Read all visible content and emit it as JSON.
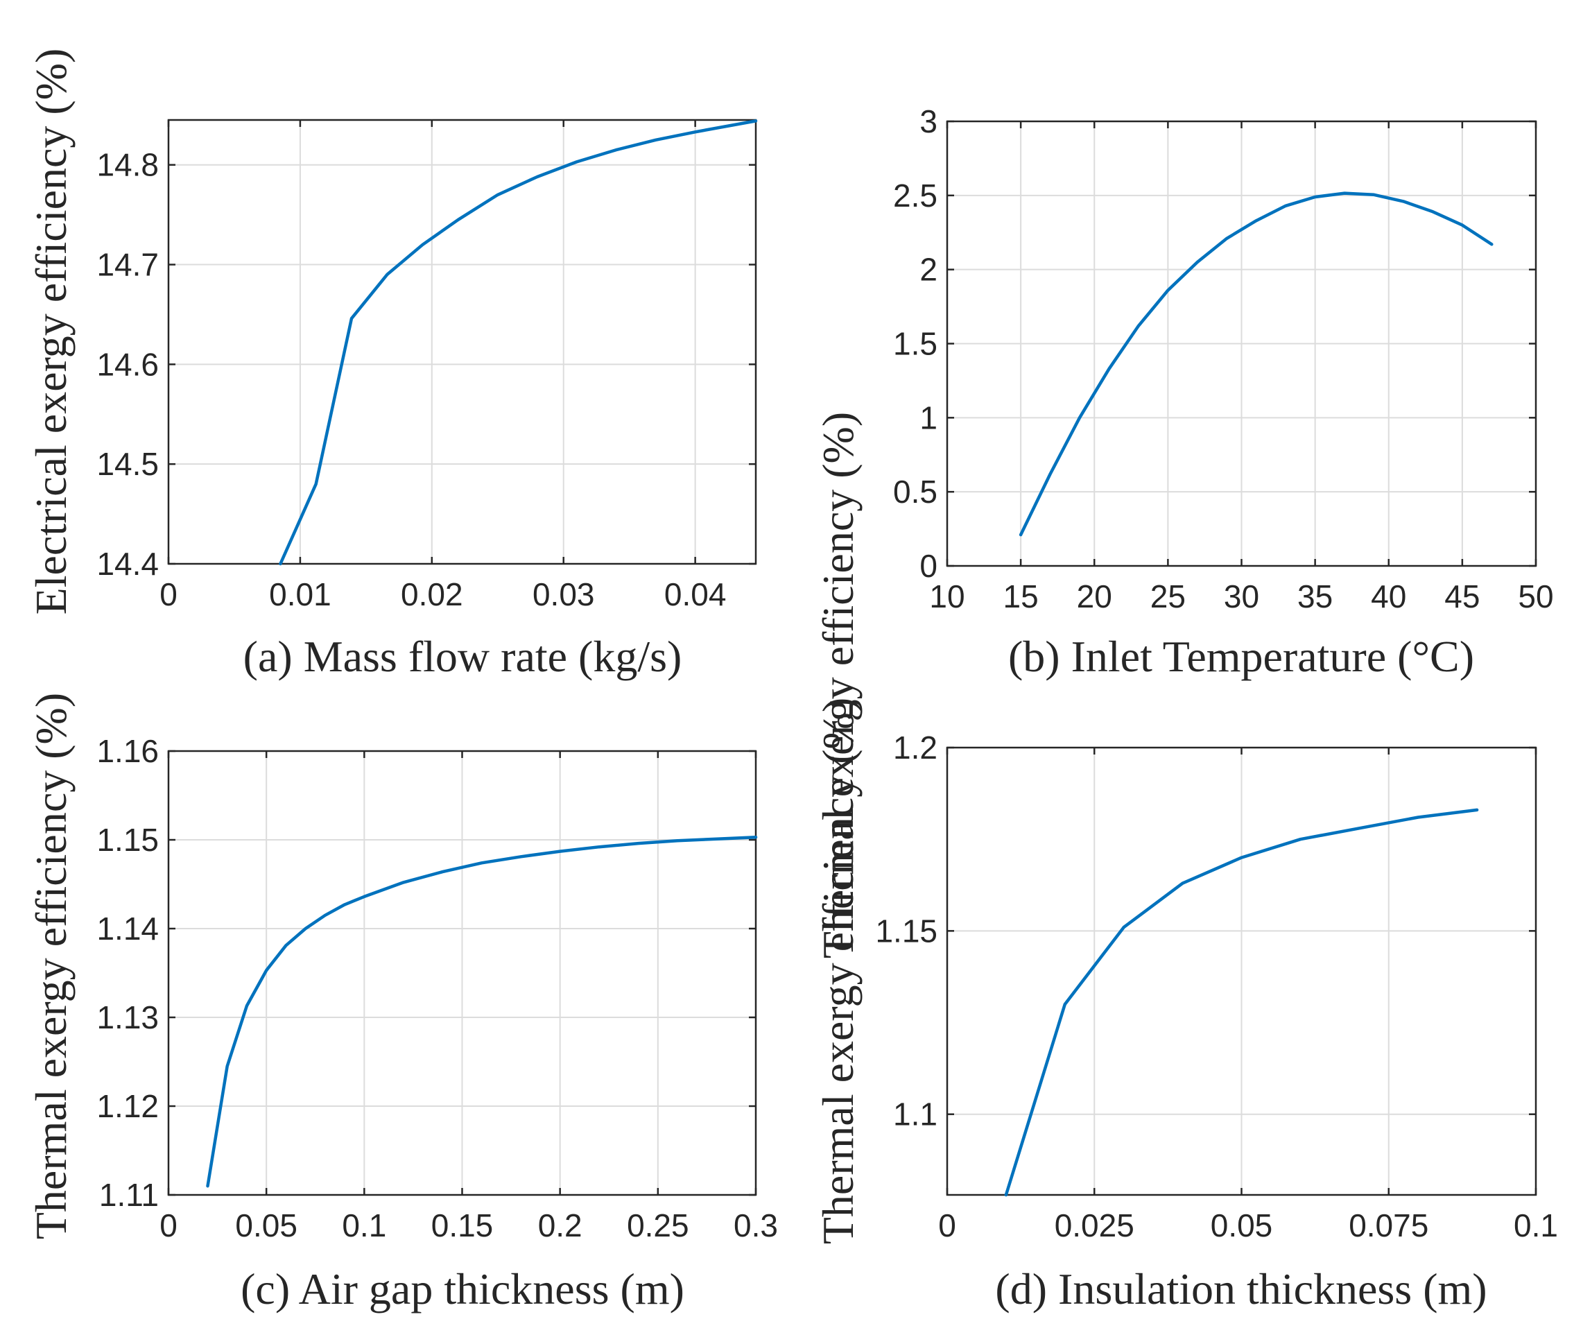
{
  "chart_data": [
    {
      "type": "line",
      "panel": "a",
      "xlabel": "(a) Mass flow rate (kg/s)",
      "ylabel": "Electrical exergy efficiency (%)",
      "xlim": [
        0,
        0.0446
      ],
      "ylim": [
        14.4,
        14.845
      ],
      "xticks": [
        0,
        0.01,
        0.02,
        0.03,
        0.04
      ],
      "xtick_labels": [
        "0",
        "0.01",
        "0.02",
        "0.03",
        "0.04"
      ],
      "yticks": [
        14.4,
        14.5,
        14.6,
        14.7,
        14.8
      ],
      "ytick_labels": [
        "14.4",
        "14.5",
        "14.6",
        "14.7",
        "14.8"
      ],
      "grid": true,
      "series": [
        {
          "name": "Electrical exergy efficiency",
          "color": "#0072bd",
          "x": [
            0.0085,
            0.0112,
            0.0139,
            0.0166,
            0.0193,
            0.022,
            0.025,
            0.028,
            0.031,
            0.034,
            0.037,
            0.04,
            0.0425,
            0.0446
          ],
          "y": [
            14.4,
            14.48,
            14.646,
            14.69,
            14.72,
            14.745,
            14.77,
            14.788,
            14.803,
            14.815,
            14.825,
            14.833,
            14.839,
            14.844
          ]
        }
      ]
    },
    {
      "type": "line",
      "panel": "b",
      "xlabel": "(b) Inlet Temperature (°C)",
      "ylabel": "Thermal exergy efficiency (%)",
      "xlim": [
        10,
        50
      ],
      "ylim": [
        0,
        3
      ],
      "xticks": [
        10,
        15,
        20,
        25,
        30,
        35,
        40,
        45,
        50
      ],
      "xtick_labels": [
        "10",
        "15",
        "20",
        "25",
        "30",
        "35",
        "40",
        "45",
        "50"
      ],
      "yticks": [
        0,
        0.5,
        1,
        1.5,
        2,
        2.5,
        3
      ],
      "ytick_labels": [
        "0",
        "0.5",
        "1",
        "1.5",
        "2",
        "2.5",
        "3"
      ],
      "grid": true,
      "series": [
        {
          "name": "Thermal exergy efficiency",
          "color": "#0072bd",
          "x": [
            15,
            17,
            19,
            21,
            23,
            25,
            27,
            29,
            31,
            33,
            35,
            37,
            39,
            41,
            43,
            45,
            47
          ],
          "y": [
            0.21,
            0.62,
            1.0,
            1.33,
            1.62,
            1.86,
            2.05,
            2.21,
            2.33,
            2.43,
            2.49,
            2.515,
            2.505,
            2.46,
            2.39,
            2.3,
            2.17
          ]
        }
      ]
    },
    {
      "type": "line",
      "panel": "c",
      "xlabel": "(c) Air gap thickness (m)",
      "ylabel": "Thermal exergy efficiency (%)",
      "xlim": [
        0,
        0.3
      ],
      "ylim": [
        1.11,
        1.16
      ],
      "xticks": [
        0,
        0.05,
        0.1,
        0.15,
        0.2,
        0.25,
        0.3
      ],
      "xtick_labels": [
        "0",
        "0.05",
        "0.1",
        "0.15",
        "0.2",
        "0.25",
        "0.3"
      ],
      "yticks": [
        1.11,
        1.12,
        1.13,
        1.14,
        1.15,
        1.16
      ],
      "ytick_labels": [
        "1.11",
        "1.12",
        "1.13",
        "1.14",
        "1.15",
        "1.16"
      ],
      "grid": true,
      "series": [
        {
          "name": "Thermal exergy efficiency",
          "color": "#0072bd",
          "x": [
            0.02,
            0.03,
            0.04,
            0.05,
            0.06,
            0.07,
            0.08,
            0.09,
            0.1,
            0.12,
            0.14,
            0.16,
            0.18,
            0.2,
            0.22,
            0.24,
            0.26,
            0.28,
            0.3
          ],
          "y": [
            1.111,
            1.1245,
            1.1313,
            1.1353,
            1.1381,
            1.14,
            1.1415,
            1.1427,
            1.1436,
            1.1452,
            1.1464,
            1.1474,
            1.1481,
            1.1487,
            1.1492,
            1.1496,
            1.1499,
            1.1501,
            1.1503
          ]
        }
      ]
    },
    {
      "type": "line",
      "panel": "d",
      "xlabel": "(d) Insulation thickness (m)",
      "ylabel": "Thermal exergy efficiency (%)",
      "xlim": [
        0,
        0.1
      ],
      "ylim": [
        1.078,
        1.2
      ],
      "xticks": [
        0,
        0.025,
        0.05,
        0.075,
        0.1
      ],
      "xtick_labels": [
        "0",
        "0.025",
        "0.05",
        "0.075",
        "0.1"
      ],
      "yticks": [
        1.1,
        1.15,
        1.2
      ],
      "ytick_labels": [
        "1.1",
        "1.15",
        "1.2"
      ],
      "grid": true,
      "series": [
        {
          "name": "Thermal exergy efficiency",
          "color": "#0072bd",
          "x": [
            0.01,
            0.02,
            0.03,
            0.04,
            0.05,
            0.06,
            0.07,
            0.08,
            0.09
          ],
          "y": [
            1.078,
            1.13,
            1.151,
            1.163,
            1.17,
            1.175,
            1.178,
            1.181,
            1.183
          ]
        }
      ]
    }
  ]
}
